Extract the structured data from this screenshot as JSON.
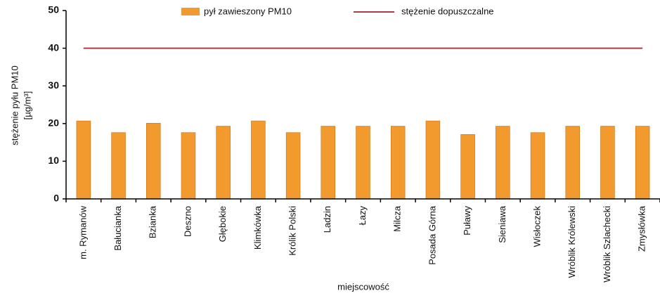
{
  "chart_data": {
    "type": "bar",
    "ylabel": [
      "stężenie pyłu PM10",
      "[µg/m³]"
    ],
    "xlabel": "miejscowość",
    "categories": [
      "m. Rymanów",
      "Bałucianka",
      "Bzianka",
      "Deszno",
      "Głębokie",
      "Klimkówka",
      "Królik Polski",
      "Ladzin",
      "Łazy",
      "Milcza",
      "Posada Górna",
      "Puławy",
      "Sieniawa",
      "Wisłoczek",
      "Wróblik Królewski",
      "Wróblik Szlachecki",
      "Zmysłówka"
    ],
    "series": [
      {
        "name": "pył zawieszony PM10",
        "type": "bar",
        "color": "#f39a2e",
        "values": [
          20.7,
          17.6,
          20.1,
          17.6,
          19.3,
          20.7,
          17.6,
          19.3,
          19.3,
          19.3,
          20.7,
          17.1,
          19.3,
          17.6,
          19.3,
          19.3,
          19.3
        ]
      },
      {
        "name": "stężenie dopuszczalne",
        "type": "line",
        "color": "#b03a48",
        "values": [
          40,
          40,
          40,
          40,
          40,
          40,
          40,
          40,
          40,
          40,
          40,
          40,
          40,
          40,
          40,
          40,
          40
        ]
      }
    ],
    "ylim": [
      0,
      50
    ],
    "yticks": [
      0,
      10,
      20,
      30,
      40,
      50
    ],
    "grid": false
  }
}
